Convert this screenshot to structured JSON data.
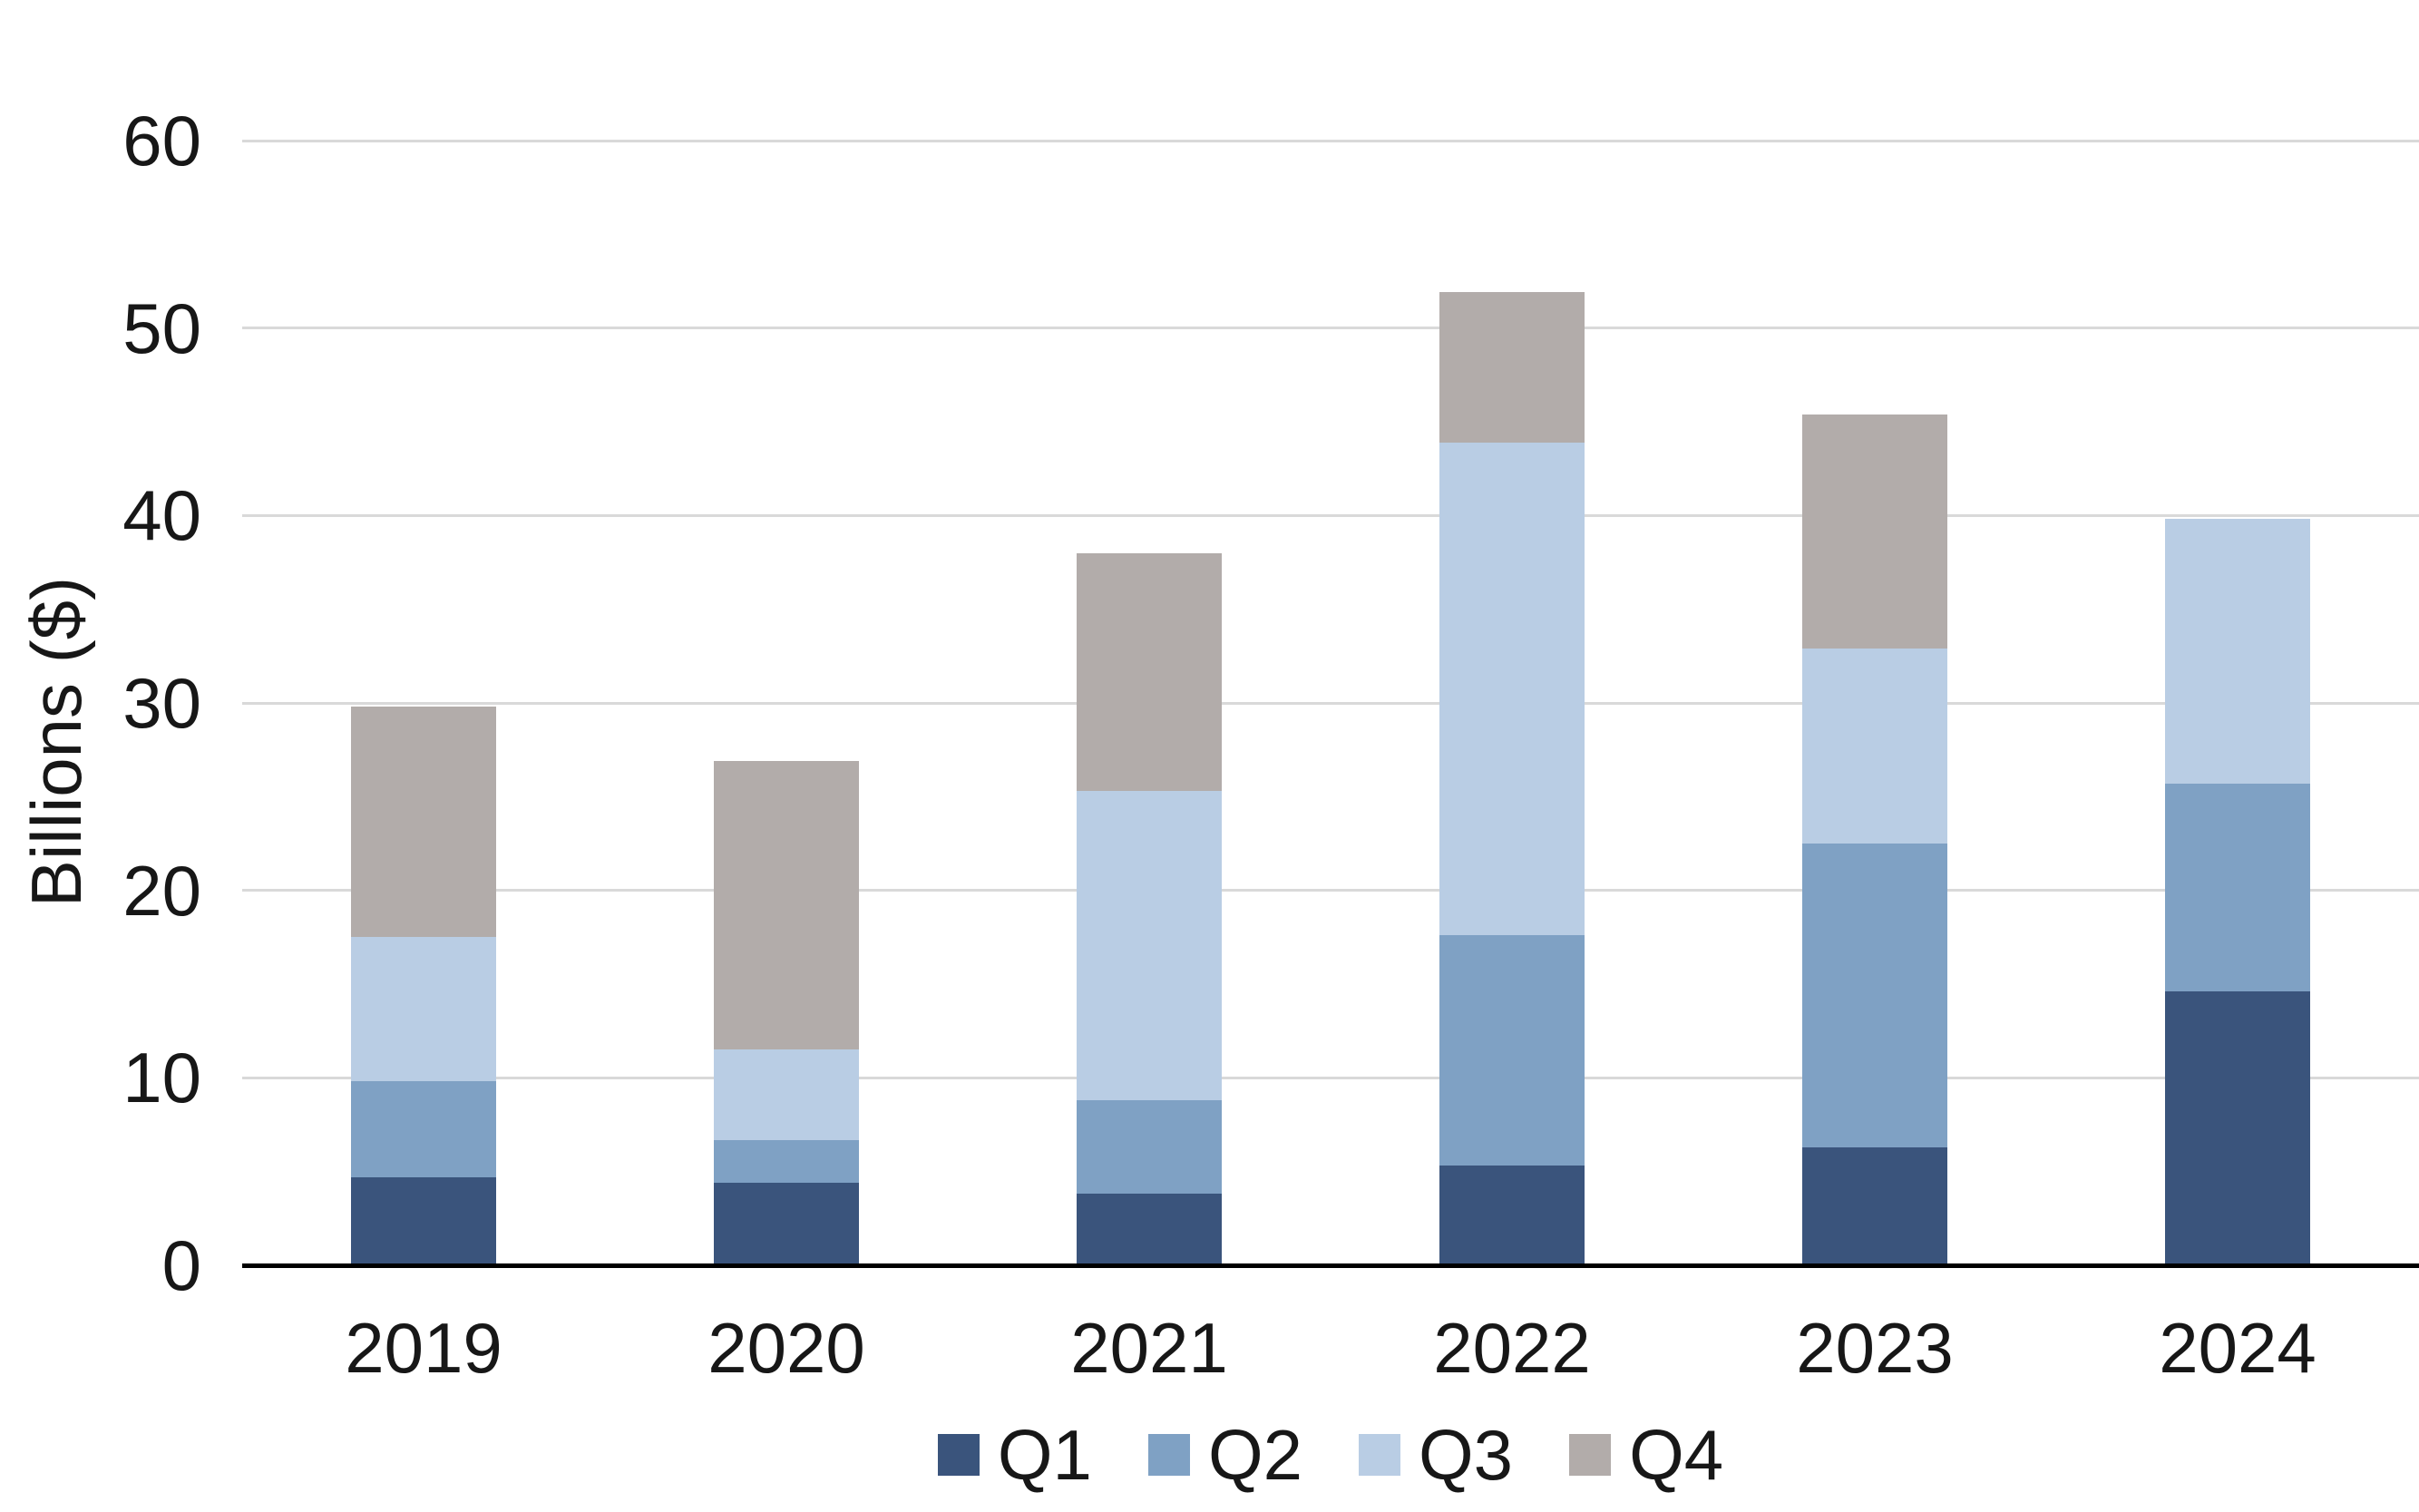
{
  "chart_data": {
    "type": "bar",
    "stacked": true,
    "title": "",
    "ylabel": "Billions ($)",
    "xlabel": "",
    "categories": [
      "2019",
      "2020",
      "2021",
      "2022",
      "2023",
      "2024"
    ],
    "series": [
      {
        "name": "Q1",
        "color": "#3a547c",
        "values": [
          4.7,
          4.4,
          3.8,
          5.3,
          6.3,
          14.6
        ]
      },
      {
        "name": "Q2",
        "color": "#7fa1c4",
        "values": [
          5.1,
          2.3,
          5.0,
          12.3,
          16.2,
          11.1
        ]
      },
      {
        "name": "Q3",
        "color": "#b9cde4",
        "values": [
          7.7,
          4.8,
          16.5,
          26.3,
          10.4,
          14.1
        ]
      },
      {
        "name": "Q4",
        "color": "#b2acaa",
        "values": [
          12.3,
          15.4,
          12.7,
          8.0,
          12.5,
          0
        ]
      }
    ],
    "totals": [
      29.8,
      26.9,
      38.0,
      51.9,
      45.4,
      39.8
    ],
    "ylim": [
      0,
      60
    ],
    "yticks": [
      0,
      10,
      20,
      30,
      40,
      50,
      60
    ],
    "grid": true,
    "legend_position": "bottom",
    "legend_labels": [
      "Q1",
      "Q2",
      "Q3",
      "Q4"
    ]
  },
  "colors": {
    "background": "#ffffff",
    "gridline": "#d9d9d9",
    "axis": "#000000",
    "text": "#171717",
    "q1": "#3a547c",
    "q2": "#7fa1c4",
    "q3": "#b9cde4",
    "q4": "#b2acaa"
  }
}
